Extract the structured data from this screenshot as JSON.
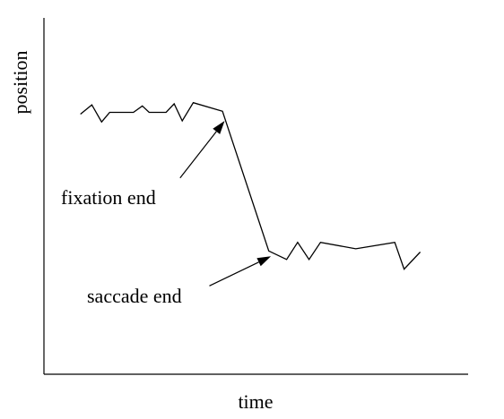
{
  "chart_data": {
    "type": "line",
    "title": "",
    "xlabel": "time",
    "ylabel": "position",
    "grid": false,
    "xlim": [
      0,
      100
    ],
    "ylim": [
      0,
      100
    ],
    "series": [
      {
        "points": [
          {
            "x": 8.6,
            "y": 73
          },
          {
            "x": 11.3,
            "y": 75.6
          },
          {
            "x": 13.6,
            "y": 70.8
          },
          {
            "x": 15.5,
            "y": 73.5
          },
          {
            "x": 21.1,
            "y": 73.5
          },
          {
            "x": 23.2,
            "y": 75.3
          },
          {
            "x": 24.8,
            "y": 73.5
          },
          {
            "x": 28.8,
            "y": 73.5
          },
          {
            "x": 30.7,
            "y": 75.9
          },
          {
            "x": 32.6,
            "y": 71.1
          },
          {
            "x": 35.2,
            "y": 76.2
          },
          {
            "x": 42.1,
            "y": 73.8
          },
          {
            "x": 53.0,
            "y": 34.6
          },
          {
            "x": 57.2,
            "y": 32.2
          },
          {
            "x": 59.8,
            "y": 37.0
          },
          {
            "x": 62.5,
            "y": 32.2
          },
          {
            "x": 65.2,
            "y": 37.0
          },
          {
            "x": 73.5,
            "y": 35.2
          },
          {
            "x": 82.7,
            "y": 37.0
          },
          {
            "x": 84.9,
            "y": 29.5
          },
          {
            "x": 88.7,
            "y": 34.3
          }
        ]
      }
    ],
    "annotations": [
      {
        "text": "fixation end",
        "point_to": {
          "x": 42.6,
          "y": 71.1
        },
        "arrow_from": {
          "x": 32.1,
          "y": 55.1
        }
      },
      {
        "text": "saccade end",
        "point_to": {
          "x": 53.5,
          "y": 33.1
        },
        "arrow_from": {
          "x": 39.0,
          "y": 24.8
        }
      }
    ]
  }
}
